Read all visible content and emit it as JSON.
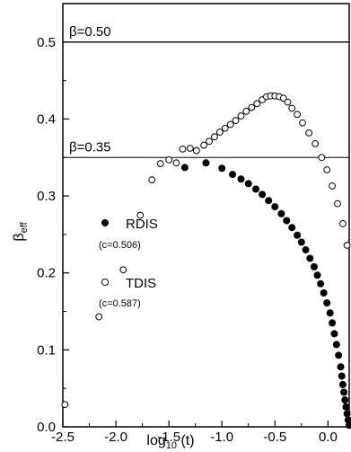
{
  "chart_data": {
    "type": "scatter",
    "xlabel": "log",
    "xlabel_sub": "10",
    "xlabel_tail": " (t)",
    "ylabel": "β",
    "ylabel_sub": "eff",
    "xlim": [
      -2.5,
      0.2
    ],
    "ylim": [
      0.0,
      0.55
    ],
    "x_ticks": [
      -2.5,
      -2.0,
      -1.5,
      -1.0,
      -0.5,
      0.0
    ],
    "x_tick_labels": [
      "-2.5",
      "-2.0",
      "-1.5",
      "-1.0",
      "-0.5",
      "0.0"
    ],
    "y_ticks": [
      0.0,
      0.1,
      0.2,
      0.3,
      0.4,
      0.5
    ],
    "y_tick_labels": [
      "0.0",
      "0.1",
      "0.2",
      "0.3",
      "0.4",
      "0.5"
    ],
    "grid": false,
    "reference_lines": [
      {
        "y": 0.5,
        "label": "β=0.50"
      },
      {
        "y": 0.35,
        "label": "β=0.35"
      }
    ],
    "legend": {
      "placement": "center-left",
      "entries": [
        {
          "marker": "filled-circle",
          "label": "RDIS",
          "sublabel": "(c=0.506)"
        },
        {
          "marker": "open-circle",
          "label": "TDIS",
          "sublabel": "(c=0.587)"
        }
      ]
    },
    "series": [
      {
        "name": "RDIS",
        "marker": "filled",
        "x": [
          -1.35,
          -1.15,
          -1.0,
          -0.9,
          -0.82,
          -0.75,
          -0.68,
          -0.62,
          -0.56,
          -0.5,
          -0.44,
          -0.39,
          -0.34,
          -0.29,
          -0.25,
          -0.21,
          -0.17,
          -0.13,
          -0.1,
          -0.07,
          -0.04,
          -0.01,
          0.02,
          0.04,
          0.06,
          0.08,
          0.1,
          0.12,
          0.13,
          0.14,
          0.15,
          0.16,
          0.17,
          0.18,
          0.19,
          0.2
        ],
        "y": [
          0.337,
          0.343,
          0.336,
          0.328,
          0.322,
          0.316,
          0.309,
          0.302,
          0.294,
          0.286,
          0.277,
          0.268,
          0.259,
          0.249,
          0.24,
          0.23,
          0.219,
          0.208,
          0.197,
          0.186,
          0.174,
          0.161,
          0.148,
          0.135,
          0.121,
          0.107,
          0.093,
          0.078,
          0.066,
          0.055,
          0.045,
          0.035,
          0.026,
          0.017,
          0.009,
          0.002
        ]
      },
      {
        "name": "TDIS",
        "marker": "open",
        "x": [
          -2.48,
          -2.16,
          -1.93,
          -1.77,
          -1.66,
          -1.58,
          -1.5,
          -1.43,
          -1.37,
          -1.3,
          -1.24,
          -1.17,
          -1.12,
          -1.07,
          -1.02,
          -0.97,
          -0.92,
          -0.87,
          -0.82,
          -0.77,
          -0.72,
          -0.67,
          -0.62,
          -0.58,
          -0.54,
          -0.5,
          -0.46,
          -0.42,
          -0.38,
          -0.34,
          -0.29,
          -0.24,
          -0.18,
          -0.12,
          -0.06,
          -0.01,
          0.04,
          0.09,
          0.14,
          0.18
        ],
        "y": [
          0.029,
          0.143,
          0.204,
          0.275,
          0.321,
          0.342,
          0.347,
          0.343,
          0.361,
          0.362,
          0.359,
          0.366,
          0.371,
          0.377,
          0.383,
          0.388,
          0.393,
          0.398,
          0.404,
          0.41,
          0.415,
          0.42,
          0.425,
          0.429,
          0.43,
          0.43,
          0.429,
          0.427,
          0.422,
          0.414,
          0.406,
          0.395,
          0.382,
          0.368,
          0.35,
          0.334,
          0.313,
          0.29,
          0.264,
          0.236
        ]
      }
    ]
  }
}
